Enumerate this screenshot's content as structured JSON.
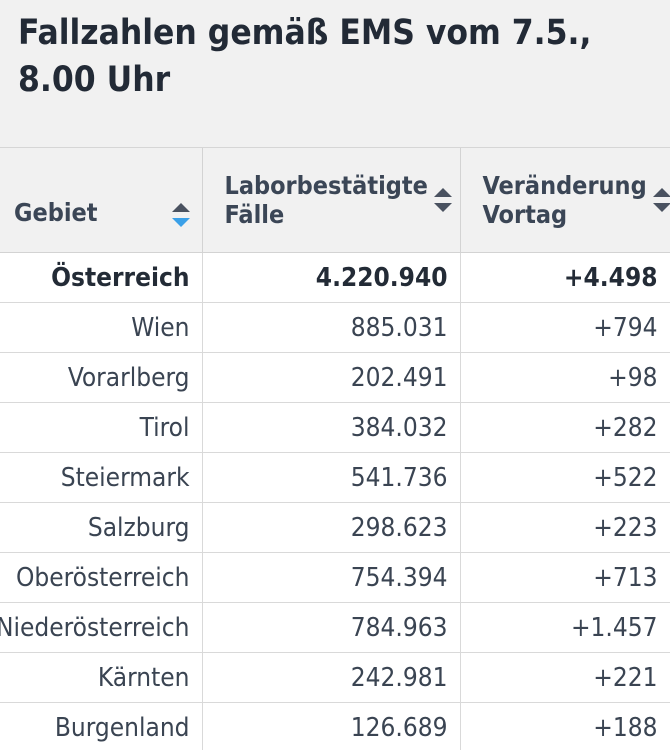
{
  "title": "Fallzahlen gemäß EMS vom 7.5., 8.00 Uhr",
  "columns": {
    "area": "Gebiet",
    "cases": "Laborbestätigte Fälle",
    "change": "Veränderung Vortag"
  },
  "icons": {
    "sort_active_color": "#3aa0e8",
    "sort_color": "#4a5260"
  },
  "rows": [
    {
      "area": "Österreich",
      "cases": "4.220.940",
      "change": "+4.498"
    },
    {
      "area": "Wien",
      "cases": "885.031",
      "change": "+794"
    },
    {
      "area": "Vorarlberg",
      "cases": "202.491",
      "change": "+98"
    },
    {
      "area": "Tirol",
      "cases": "384.032",
      "change": "+282"
    },
    {
      "area": "Steiermark",
      "cases": "541.736",
      "change": "+522"
    },
    {
      "area": "Salzburg",
      "cases": "298.623",
      "change": "+223"
    },
    {
      "area": "Oberösterreich",
      "cases": "754.394",
      "change": "+713"
    },
    {
      "area": "Niederösterreich",
      "cases": "784.963",
      "change": "+1.457"
    },
    {
      "area": "Kärnten",
      "cases": "242.981",
      "change": "+221"
    },
    {
      "area": "Burgenland",
      "cases": "126.689",
      "change": "+188"
    }
  ]
}
